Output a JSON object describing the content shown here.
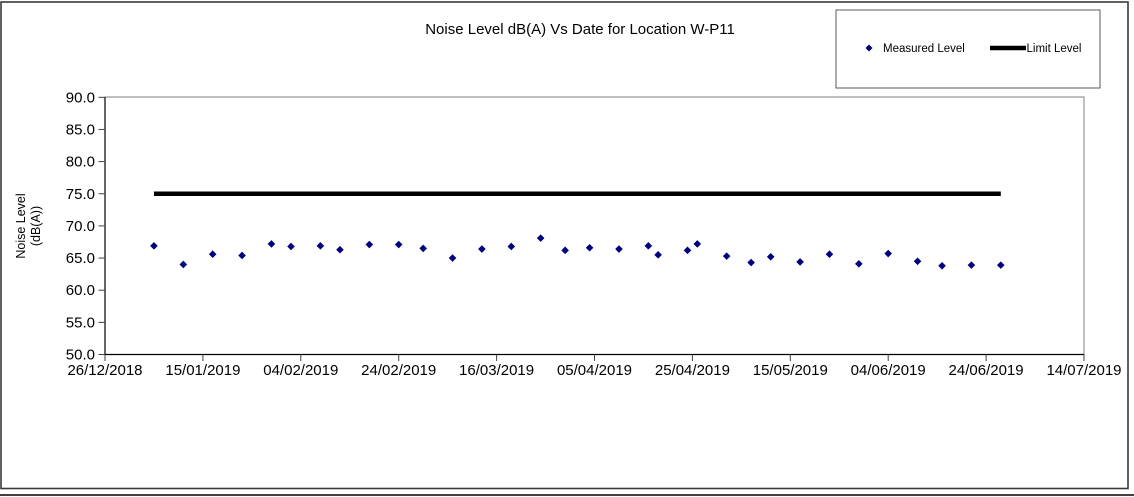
{
  "chart_data": {
    "type": "scatter",
    "title": "Noise Level dB(A) Vs Date for Location W-P11",
    "xlabel": "",
    "ylabel": "Noise Level (dB(A))",
    "ylabel_lines": [
      "Noise Level",
      "(dB(A))"
    ],
    "ylim": [
      50.0,
      90.0
    ],
    "y_tick_step": 5.0,
    "y_ticks": [
      "90.0",
      "85.0",
      "80.0",
      "75.0",
      "70.0",
      "65.0",
      "60.0",
      "55.0",
      "50.0"
    ],
    "x_ticks": [
      "26/12/2018",
      "15/01/2019",
      "04/02/2019",
      "24/02/2019",
      "16/03/2019",
      "05/04/2019",
      "25/04/2019",
      "15/05/2019",
      "04/06/2019",
      "24/06/2019",
      "14/07/2019"
    ],
    "grid": false,
    "legend_position": "top-right",
    "series": [
      {
        "name": "Measured Level",
        "type": "scatter",
        "marker": "diamond",
        "color": "#000080",
        "points": [
          {
            "date": "05/01/2019",
            "value": 66.9
          },
          {
            "date": "11/01/2019",
            "value": 64.0
          },
          {
            "date": "17/01/2019",
            "value": 65.6
          },
          {
            "date": "23/01/2019",
            "value": 65.4
          },
          {
            "date": "29/01/2019",
            "value": 67.2
          },
          {
            "date": "02/02/2019",
            "value": 66.8
          },
          {
            "date": "08/02/2019",
            "value": 66.9
          },
          {
            "date": "12/02/2019",
            "value": 66.3
          },
          {
            "date": "18/02/2019",
            "value": 67.1
          },
          {
            "date": "24/02/2019",
            "value": 67.1
          },
          {
            "date": "01/03/2019",
            "value": 66.5
          },
          {
            "date": "07/03/2019",
            "value": 65.0
          },
          {
            "date": "13/03/2019",
            "value": 66.4
          },
          {
            "date": "19/03/2019",
            "value": 66.8
          },
          {
            "date": "25/03/2019",
            "value": 68.1
          },
          {
            "date": "30/03/2019",
            "value": 66.2
          },
          {
            "date": "04/04/2019",
            "value": 66.6
          },
          {
            "date": "10/04/2019",
            "value": 66.4
          },
          {
            "date": "16/04/2019",
            "value": 66.9
          },
          {
            "date": "18/04/2019",
            "value": 65.5
          },
          {
            "date": "24/04/2019",
            "value": 66.2
          },
          {
            "date": "26/04/2019",
            "value": 67.2
          },
          {
            "date": "02/05/2019",
            "value": 65.3
          },
          {
            "date": "07/05/2019",
            "value": 64.3
          },
          {
            "date": "11/05/2019",
            "value": 65.2
          },
          {
            "date": "17/05/2019",
            "value": 64.4
          },
          {
            "date": "23/05/2019",
            "value": 65.6
          },
          {
            "date": "29/05/2019",
            "value": 64.1
          },
          {
            "date": "04/06/2019",
            "value": 65.7
          },
          {
            "date": "10/06/2019",
            "value": 64.5
          },
          {
            "date": "15/06/2019",
            "value": 63.8
          },
          {
            "date": "21/06/2019",
            "value": 63.9
          },
          {
            "date": "27/06/2019",
            "value": 63.9
          }
        ]
      },
      {
        "name": "Limit Level",
        "type": "line",
        "color": "#000000",
        "value": 75.0,
        "start_date": "05/01/2019",
        "end_date": "27/06/2019"
      }
    ]
  }
}
